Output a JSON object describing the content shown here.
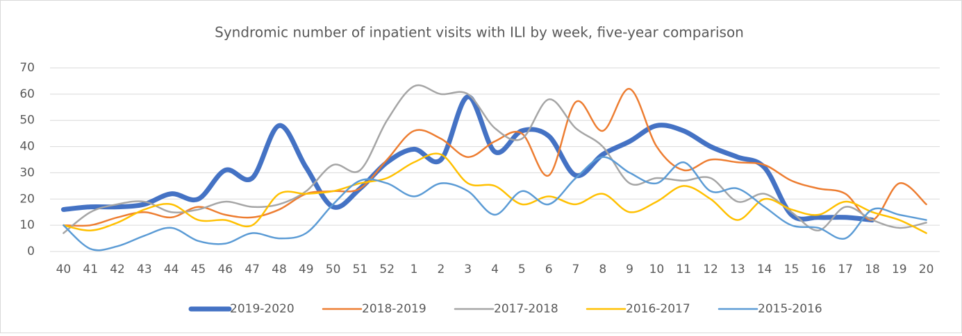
{
  "chart_data": {
    "type": "line",
    "title": "Syndromic number of inpatient visits with ILI by week, five-year comparison",
    "categories": [
      "40",
      "41",
      "42",
      "43",
      "44",
      "45",
      "46",
      "47",
      "48",
      "49",
      "50",
      "51",
      "52",
      "1",
      "2",
      "3",
      "4",
      "5",
      "6",
      "7",
      "8",
      "9",
      "10",
      "11",
      "12",
      "13",
      "14",
      "15",
      "16",
      "17",
      "18",
      "19",
      "20"
    ],
    "ylim": [
      0,
      70
    ],
    "yticks": [
      0,
      10,
      20,
      30,
      40,
      50,
      60,
      70
    ],
    "grid": true,
    "legend": "bottom",
    "smooth": true,
    "series": [
      {
        "name": "2019-2020",
        "color": "#4472c4",
        "width": 7,
        "values": [
          16,
          17,
          17,
          18,
          22,
          20,
          31,
          28,
          48,
          32,
          17,
          24,
          34,
          39,
          35,
          59,
          38,
          46,
          44,
          29,
          37,
          42,
          48,
          46,
          40,
          36,
          32,
          14,
          13,
          13,
          12,
          null,
          null
        ]
      },
      {
        "name": "2018-2019",
        "color": "#ed7d31",
        "width": 2.5,
        "values": [
          10,
          10,
          13,
          15,
          13,
          17,
          14,
          13,
          16,
          22,
          23,
          24,
          35,
          46,
          43,
          36,
          42,
          45,
          29,
          57,
          46,
          62,
          40,
          31,
          35,
          34,
          33,
          27,
          24,
          22,
          12,
          26,
          18
        ]
      },
      {
        "name": "2017-2018",
        "color": "#a5a5a5",
        "width": 2.5,
        "values": [
          7,
          15,
          18,
          19,
          15,
          16,
          19,
          17,
          18,
          23,
          33,
          31,
          50,
          63,
          60,
          60,
          47,
          43,
          58,
          47,
          40,
          26,
          28,
          27,
          28,
          19,
          22,
          15,
          8,
          17,
          12,
          9,
          11
        ]
      },
      {
        "name": "2016-2017",
        "color": "#ffc000",
        "width": 2.5,
        "values": [
          10,
          8,
          11,
          16,
          18,
          12,
          12,
          10,
          22,
          22,
          23,
          26,
          28,
          34,
          37,
          26,
          25,
          18,
          21,
          18,
          22,
          15,
          19,
          25,
          20,
          12,
          20,
          16,
          14,
          19,
          15,
          12,
          7
        ]
      },
      {
        "name": "2015-2016",
        "color": "#5b9bd5",
        "width": 2.5,
        "values": [
          10,
          1,
          2,
          6,
          9,
          4,
          3,
          7,
          5,
          7,
          18,
          27,
          26,
          21,
          26,
          23,
          14,
          23,
          18,
          28,
          36,
          30,
          26,
          34,
          23,
          24,
          17,
          10,
          9,
          5,
          16,
          14,
          12
        ]
      }
    ]
  }
}
